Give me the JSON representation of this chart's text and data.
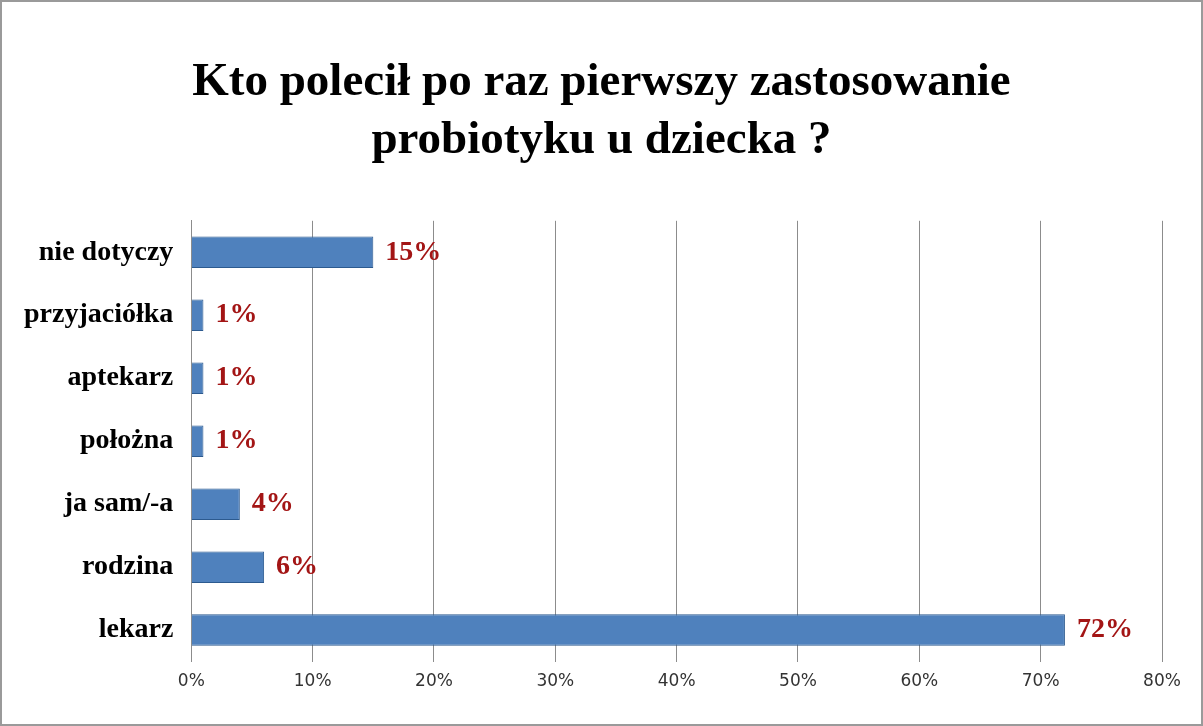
{
  "chart_data": {
    "type": "bar",
    "orientation": "horizontal",
    "title": "Kto polecił po raz pierwszy zastosowanie probiotyku u dziecka ?",
    "categories": [
      "nie dotyczy",
      "przyjaciółka",
      "aptekarz",
      "położna",
      "ja sam/-a",
      "rodzina",
      "lekarz"
    ],
    "values": [
      15,
      1,
      1,
      1,
      4,
      6,
      72
    ],
    "value_labels": [
      "15%",
      "1%",
      "1%",
      "1%",
      "4%",
      "6%",
      "72%"
    ],
    "color": "#4f81bd",
    "xlim": [
      0,
      80
    ],
    "xticks": [
      {
        "value": 0,
        "label": "0%"
      },
      {
        "value": 10,
        "label": "10%"
      },
      {
        "value": 20,
        "label": "20%"
      },
      {
        "value": 30,
        "label": "30%"
      },
      {
        "value": 40,
        "label": "40%"
      },
      {
        "value": 50,
        "label": "50%"
      },
      {
        "value": 60,
        "label": "60%"
      },
      {
        "value": 70,
        "label": "70%"
      },
      {
        "value": 80,
        "label": "80%"
      }
    ],
    "grid": "x",
    "legend": false
  }
}
